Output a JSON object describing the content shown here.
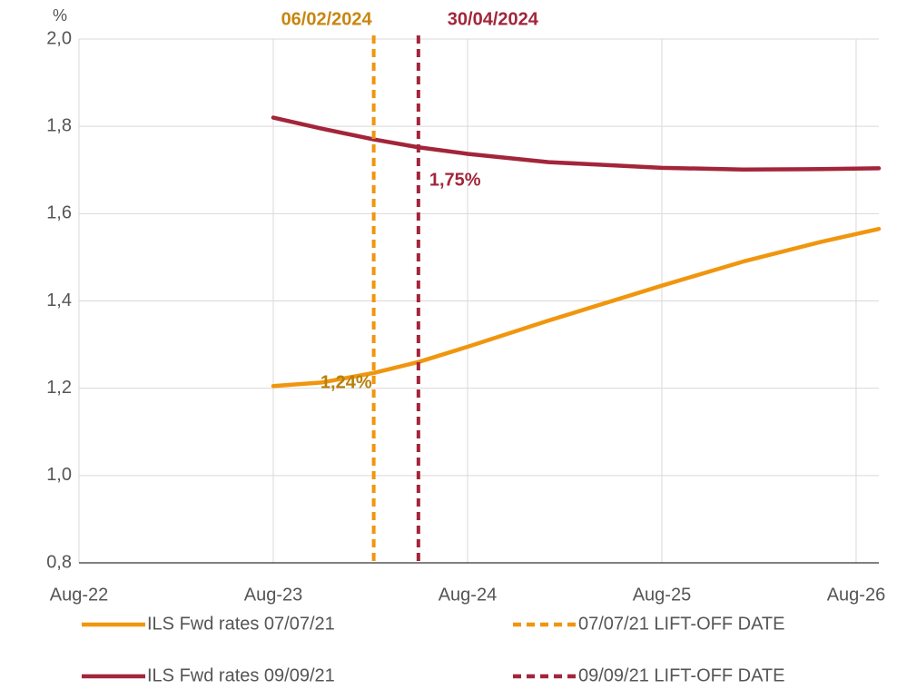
{
  "chart_data": {
    "type": "line",
    "y_unit_label": "%",
    "xlim": [
      2022.583,
      2026.7
    ],
    "xticks": [
      {
        "value": 2022.583,
        "label": "Aug-22"
      },
      {
        "value": 2023.583,
        "label": "Aug-23"
      },
      {
        "value": 2024.583,
        "label": "Aug-24"
      },
      {
        "value": 2025.583,
        "label": "Aug-25"
      },
      {
        "value": 2026.583,
        "label": "Aug-26"
      }
    ],
    "ylim": [
      0.8,
      2.0
    ],
    "yticks": [
      {
        "value": 0.8,
        "label": "0,8"
      },
      {
        "value": 1.0,
        "label": "1,0"
      },
      {
        "value": 1.2,
        "label": "1,2"
      },
      {
        "value": 1.4,
        "label": "1,4"
      },
      {
        "value": 1.6,
        "label": "1,6"
      },
      {
        "value": 1.8,
        "label": "1,8"
      },
      {
        "value": 2.0,
        "label": "2,0"
      }
    ],
    "grid": true,
    "series": [
      {
        "name": "ILS Fwd rates 07/07/21",
        "color": "#f0960e",
        "x": [
          2023.583,
          2023.83,
          2024.1,
          2024.33,
          2024.583,
          2025.0,
          2025.583,
          2026.0,
          2026.4,
          2026.7
        ],
        "values": [
          1.205,
          1.213,
          1.235,
          1.26,
          1.295,
          1.355,
          1.435,
          1.49,
          1.535,
          1.565
        ]
      },
      {
        "name": "ILS Fwd rates 09/09/21",
        "color": "#a3253a",
        "x": [
          2023.583,
          2023.83,
          2024.1,
          2024.33,
          2024.583,
          2025.0,
          2025.583,
          2026.0,
          2026.4,
          2026.7
        ],
        "values": [
          1.82,
          1.795,
          1.77,
          1.752,
          1.737,
          1.718,
          1.705,
          1.701,
          1.702,
          1.704
        ]
      }
    ],
    "vlines": [
      {
        "name": "07/07/21 LIFT-OFF DATE",
        "color": "#f0960e",
        "x": 2024.1,
        "label": "06/02/2024",
        "label_color": "#c8860f"
      },
      {
        "name": "09/09/21 LIFT-OFF DATE",
        "color": "#a3253a",
        "x": 2024.33,
        "label": "30/04/2024",
        "label_color": "#a3253a"
      }
    ],
    "annotations": [
      {
        "text": "1,24%",
        "x": 2024.1,
        "y": 1.24,
        "color": "#b8800c",
        "side": "left"
      },
      {
        "text": "1,75%",
        "x": 2024.33,
        "y": 1.75,
        "color": "#a3253a",
        "side": "right"
      }
    ]
  }
}
